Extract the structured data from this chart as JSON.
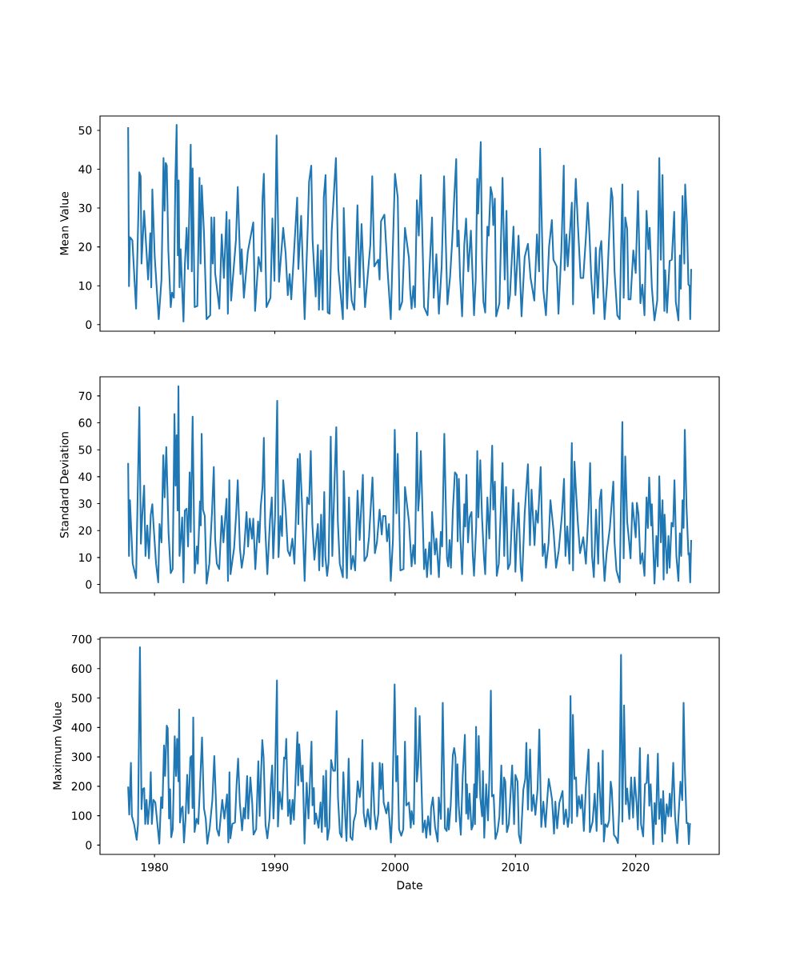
{
  "chart_data": [
    {
      "type": "line",
      "color": "#1f77b4",
      "ylabel": "Mean Value",
      "tick_labels": "y",
      "xlim": [
        1975.47,
        2026.94
      ],
      "xticks": [
        1980,
        1990,
        2000,
        2010,
        2020
      ],
      "ylim": [
        -1.7,
        53.7
      ],
      "yticks": [
        0,
        10,
        20,
        30,
        40,
        50
      ],
      "x": [
        1977.81,
        1977.88,
        1977.96,
        1978.16,
        1978.47,
        1978.74,
        1978.85,
        1978.92,
        1979.14,
        1979.47,
        1979.65,
        1979.73,
        1979.82,
        1980.02,
        1980.35,
        1980.58,
        1980.75,
        1980.84,
        1980.93,
        1981.02,
        1981.15,
        1981.35,
        1981.46,
        1981.61,
        1981.73,
        1981.84,
        1981.94,
        1982.01,
        1982.08,
        1982.17,
        1982.41,
        1982.52,
        1982.67,
        1982.79,
        1983.01,
        1983.1,
        1983.17,
        1983.34,
        1983.56,
        1983.74,
        1983.83,
        1983.93,
        1984.11,
        1984.33,
        1984.63,
        1984.73,
        1984.84,
        1984.96,
        1985.04,
        1985.39,
        1985.59,
        1985.77,
        1985.99,
        1986.1,
        1986.22,
        1986.37,
        1986.77,
        1986.92,
        1987.15,
        1987.25,
        1987.43,
        1987.76,
        1988.21,
        1988.36,
        1988.65,
        1988.87,
        1988.98,
        1989.09,
        1989.31,
        1989.64,
        1989.8,
        1989.97,
        1990.15,
        1990.35,
        1990.7,
        1990.9,
        1991.08,
        1991.23,
        1991.37,
        1991.86,
        1991.96,
        1992.19,
        1992.48,
        1992.74,
        1992.85,
        1993.03,
        1993.14,
        1993.4,
        1993.58,
        1993.67,
        1993.85,
        1993.98,
        1994.07,
        1994.22,
        1994.4,
        1994.55,
        1994.73,
        1994.91,
        1995.08,
        1995.28,
        1995.66,
        1995.73,
        1995.84,
        1996.01,
        1996.17,
        1996.39,
        1996.61,
        1996.87,
        1997.05,
        1997.21,
        1997.5,
        1997.94,
        1998.1,
        1998.27,
        1998.6,
        1998.71,
        1998.83,
        1999.11,
        1999.38,
        1999.64,
        1999.99,
        2000.22,
        2000.37,
        2000.59,
        2000.82,
        2001.15,
        2001.25,
        2001.37,
        2001.52,
        2001.65,
        2001.81,
        2001.97,
        2002.14,
        2002.41,
        2002.7,
        2002.85,
        2003.07,
        2003.21,
        2003.43,
        2003.64,
        2003.87,
        2004.07,
        2004.35,
        2004.57,
        2004.75,
        2004.91,
        2005.08,
        2005.17,
        2005.28,
        2005.4,
        2005.57,
        2005.75,
        2005.9,
        2006.08,
        2006.3,
        2006.56,
        2006.7,
        2006.83,
        2006.9,
        2007.01,
        2007.12,
        2007.23,
        2007.34,
        2007.49,
        2007.67,
        2007.78,
        2007.94,
        2008.07,
        2008.16,
        2008.29,
        2008.4,
        2008.67,
        2008.93,
        2009.11,
        2009.26,
        2009.4,
        2009.55,
        2009.84,
        2010.0,
        2010.26,
        2010.51,
        2010.77,
        2011.04,
        2011.26,
        2011.57,
        2011.79,
        2011.97,
        2012.05,
        2012.32,
        2012.54,
        2012.8,
        2013.03,
        2013.16,
        2013.43,
        2013.58,
        2013.82,
        2014.02,
        2014.09,
        2014.24,
        2014.35,
        2014.69,
        2014.79,
        2014.91,
        2015.02,
        2015.19,
        2015.42,
        2015.64,
        2015.86,
        2016.01,
        2016.15,
        2016.3,
        2016.52,
        2016.68,
        2016.85,
        2017.01,
        2017.14,
        2017.41,
        2017.63,
        2017.96,
        2018.07,
        2018.24,
        2018.47,
        2018.67,
        2018.89,
        2019.0,
        2019.13,
        2019.29,
        2019.4,
        2019.57,
        2019.8,
        2020.0,
        2020.19,
        2020.39,
        2020.55,
        2020.73,
        2020.9,
        2021.06,
        2021.16,
        2021.34,
        2021.56,
        2021.79,
        2021.96,
        2022.09,
        2022.23,
        2022.38,
        2022.45,
        2022.6,
        2022.82,
        2023.0,
        2023.2,
        2023.33,
        2023.55,
        2023.67,
        2023.75,
        2023.89,
        2024.04,
        2024.11,
        2024.26,
        2024.38,
        2024.48,
        2024.53,
        2024.61
      ],
      "values": [
        50.8,
        9.9,
        22.5,
        21.7,
        4.1,
        39.2,
        38.2,
        15.7,
        29.3,
        11.6,
        23.5,
        9.6,
        34.8,
        17.4,
        1.4,
        11.6,
        42.9,
        29.3,
        41.6,
        40.9,
        19.1,
        4.5,
        8.2,
        6.9,
        36.8,
        51.4,
        17.8,
        37.1,
        9.6,
        19.4,
        0.8,
        15,
        24.9,
        14.3,
        46.3,
        13.7,
        40.2,
        4.5,
        4.8,
        37.8,
        15.7,
        35.8,
        23.9,
        1.4,
        2.4,
        27.6,
        15.7,
        27.6,
        13.3,
        4.1,
        23.2,
        12,
        29,
        2.8,
        26.9,
        6.2,
        21.8,
        35.4,
        13,
        19.4,
        6.9,
        18.8,
        26.3,
        3.5,
        17.4,
        13.7,
        32.4,
        38.8,
        4.5,
        6.9,
        27.3,
        11.3,
        48.7,
        11,
        24.9,
        18.4,
        7.6,
        13,
        6.5,
        32.7,
        14.3,
        28,
        1.4,
        25.2,
        36.8,
        40.9,
        21.8,
        7.2,
        20.5,
        3.8,
        19.1,
        3.8,
        32.7,
        38.5,
        3.1,
        2.8,
        24.2,
        33.7,
        42.9,
        14.3,
        1.4,
        30,
        19.8,
        4.1,
        17.4,
        6.2,
        3.8,
        30.7,
        9.6,
        25.9,
        4.5,
        20.5,
        38.2,
        15,
        16.7,
        11.6,
        26.6,
        28.3,
        13.7,
        1.4,
        38.8,
        32.7,
        3.8,
        5.9,
        24.9,
        17.1,
        8.9,
        4.1,
        9.9,
        4.5,
        32,
        22.9,
        38.5,
        4.5,
        2.4,
        13.7,
        27.6,
        6.9,
        18.1,
        2.8,
        15,
        38.2,
        5.2,
        12.3,
        21.8,
        32.4,
        42.6,
        20.1,
        24.2,
        12.3,
        2.1,
        20.5,
        27.3,
        13.7,
        24.2,
        2.4,
        11.6,
        37.5,
        28.6,
        37.5,
        47,
        16.7,
        5.9,
        3.1,
        25.2,
        22.9,
        35.4,
        33.4,
        25.6,
        32.4,
        2.1,
        5.5,
        37.8,
        11.6,
        29.3,
        4.1,
        7.6,
        25.2,
        7.6,
        22.9,
        2.1,
        17.4,
        20.8,
        12,
        6.2,
        23.2,
        13.7,
        45.3,
        8.9,
        2.4,
        20.1,
        26.9,
        16.7,
        15,
        2.8,
        19.1,
        40.9,
        14,
        23.2,
        15,
        31.4,
        5.2,
        28.6,
        37.5,
        25.9,
        12,
        12,
        22.5,
        31.4,
        23.5,
        12.3,
        2.8,
        19.8,
        6.9,
        19.1,
        21.5,
        1.4,
        11,
        35.1,
        32.7,
        13.7,
        2.4,
        1.4,
        36.1,
        6.9,
        27.6,
        24.6,
        6.5,
        6.5,
        19.1,
        13.3,
        34.4,
        5.5,
        10.3,
        2.4,
        29.3,
        19.4,
        24.9,
        9.6,
        1.1,
        6.2,
        42.9,
        16.7,
        38.5,
        3.5,
        14,
        3.1,
        16.4,
        16.7,
        29,
        5.9,
        1.1,
        17.8,
        9.2,
        33.1,
        15.7,
        36.1,
        25.9,
        10.3,
        9.9,
        1.4,
        14.3
      ]
    },
    {
      "type": "line",
      "color": "#1f77b4",
      "ylabel": "Standard Deviation",
      "tick_labels": "y",
      "xlim": [
        1975.47,
        2026.94
      ],
      "xticks": [
        1980,
        1990,
        2000,
        2010,
        2020
      ],
      "ylim": [
        -3.1,
        77.1
      ],
      "yticks": [
        0,
        10,
        20,
        30,
        40,
        50,
        60,
        70
      ],
      "x": [
        1977.81,
        1977.88,
        1977.96,
        1978.19,
        1978.47,
        1978.74,
        1978.87,
        1978.98,
        1979.14,
        1979.25,
        1979.4,
        1979.54,
        1979.69,
        1979.82,
        1979.91,
        1980.13,
        1980.31,
        1980.42,
        1980.58,
        1980.73,
        1980.84,
        1980.98,
        1981.17,
        1981.35,
        1981.51,
        1981.66,
        1981.75,
        1981.84,
        1981.92,
        1981.99,
        1982.08,
        1982.19,
        1982.3,
        1982.41,
        1982.52,
        1982.67,
        1982.79,
        1982.92,
        1983.01,
        1983.17,
        1983.34,
        1983.52,
        1983.6,
        1983.78,
        1983.85,
        1983.92,
        1984.03,
        1984.18,
        1984.33,
        1984.56,
        1984.78,
        1984.93,
        1985.04,
        1985.18,
        1985.38,
        1985.59,
        1985.73,
        1985.99,
        1986.11,
        1986.22,
        1986.32,
        1986.62,
        1986.79,
        1986.92,
        1987.1,
        1987.25,
        1987.43,
        1987.65,
        1987.78,
        1987.92,
        1988.1,
        1988.21,
        1988.38,
        1988.61,
        1988.71,
        1988.83,
        1988.98,
        1989.09,
        1989.2,
        1989.38,
        1989.6,
        1989.75,
        1989.87,
        1990.02,
        1990.2,
        1990.31,
        1990.47,
        1990.6,
        1990.7,
        1990.9,
        1991.08,
        1991.26,
        1991.46,
        1991.63,
        1991.81,
        1991.9,
        1991.96,
        1992.08,
        1992.26,
        1992.48,
        1992.69,
        1992.85,
        1992.99,
        1993.12,
        1993.29,
        1993.58,
        1993.69,
        1993.85,
        1993.98,
        1994.11,
        1994.2,
        1994.35,
        1994.47,
        1994.65,
        1994.78,
        1994.95,
        1995.11,
        1995.24,
        1995.4,
        1995.66,
        1995.73,
        1995.84,
        1995.99,
        1996.17,
        1996.34,
        1996.5,
        1996.68,
        1996.88,
        1997.05,
        1997.32,
        1997.45,
        1997.67,
        1997.83,
        1998.12,
        1998.32,
        1998.49,
        1998.71,
        1998.89,
        1999.0,
        1999.2,
        1999.33,
        1999.49,
        1999.64,
        1999.82,
        1999.97,
        2000.11,
        2000.22,
        2000.44,
        2000.7,
        2000.82,
        2001.15,
        2001.37,
        2001.52,
        2001.65,
        2001.81,
        2001.92,
        2002.03,
        2002.14,
        2002.41,
        2002.54,
        2002.65,
        2002.85,
        2002.98,
        2003.07,
        2003.31,
        2003.43,
        2003.64,
        2003.8,
        2003.91,
        2004.09,
        2004.31,
        2004.42,
        2004.53,
        2004.64,
        2004.8,
        2004.97,
        2005.13,
        2005.2,
        2005.3,
        2005.42,
        2005.57,
        2005.75,
        2005.83,
        2005.93,
        2006.06,
        2006.19,
        2006.35,
        2006.46,
        2006.56,
        2006.74,
        2006.83,
        2006.92,
        2007.08,
        2007.23,
        2007.39,
        2007.49,
        2007.67,
        2007.83,
        2007.94,
        2008.07,
        2008.16,
        2008.29,
        2008.45,
        2008.62,
        2008.93,
        2009.07,
        2009.22,
        2009.38,
        2009.55,
        2009.82,
        2010.0,
        2010.11,
        2010.26,
        2010.44,
        2010.55,
        2010.77,
        2011.04,
        2011.21,
        2011.34,
        2011.59,
        2011.72,
        2011.87,
        2012.1,
        2012.27,
        2012.43,
        2012.54,
        2012.76,
        2012.91,
        2013.16,
        2013.38,
        2013.6,
        2013.86,
        2014.04,
        2014.16,
        2014.31,
        2014.49,
        2014.69,
        2014.79,
        2014.91,
        2015.02,
        2015.19,
        2015.37,
        2015.64,
        2015.86,
        2016.08,
        2016.21,
        2016.37,
        2016.52,
        2016.7,
        2016.88,
        2017.01,
        2017.14,
        2017.29,
        2017.41,
        2017.58,
        2017.85,
        2018.14,
        2018.24,
        2018.4,
        2018.67,
        2018.89,
        2019.0,
        2019.13,
        2019.29,
        2019.46,
        2019.57,
        2019.73,
        2020.0,
        2020.1,
        2020.23,
        2020.39,
        2020.55,
        2020.73,
        2020.9,
        2021.01,
        2021.12,
        2021.28,
        2021.34,
        2021.56,
        2021.72,
        2021.83,
        2021.96,
        2022.09,
        2022.23,
        2022.32,
        2022.4,
        2022.6,
        2022.72,
        2022.82,
        2022.98,
        2023.11,
        2023.22,
        2023.38,
        2023.55,
        2023.67,
        2023.78,
        2023.89,
        2023.98,
        2024.08,
        2024.22,
        2024.38,
        2024.44,
        2024.53,
        2024.61
      ],
      "values": [
        45.1,
        10.6,
        31.3,
        7.7,
        2.3,
        65.8,
        15.1,
        25.4,
        36.7,
        10.6,
        21.9,
        9.7,
        25.9,
        29.8,
        22.9,
        7.7,
        0.8,
        22.4,
        15.6,
        48,
        32.3,
        51,
        19,
        4.2,
        5.7,
        63.3,
        36.7,
        55.4,
        27.4,
        73.6,
        10.6,
        17,
        24.9,
        0.8,
        27.4,
        28.1,
        14.1,
        41.6,
        19.5,
        62.3,
        4.2,
        14.1,
        7.7,
        30.8,
        21.9,
        55.9,
        27.8,
        25.4,
        0.3,
        7.7,
        26.9,
        43.6,
        17,
        7.7,
        5.7,
        25.4,
        15.6,
        31.8,
        1.3,
        38.7,
        3.8,
        13.6,
        26.4,
        38.7,
        13.6,
        6.2,
        11.6,
        26.9,
        14.1,
        24.4,
        17,
        24.4,
        5.7,
        23.4,
        15.6,
        28.9,
        36.2,
        54.4,
        21.5,
        3.8,
        23.9,
        32.3,
        9.7,
        25.4,
        68.2,
        10.1,
        25.4,
        18,
        38.7,
        27.8,
        12.6,
        10.6,
        17,
        7.7,
        33.3,
        46.6,
        22.4,
        48.5,
        30.3,
        1.3,
        32.3,
        29.8,
        49.5,
        22.4,
        9.2,
        22.4,
        5.2,
        25.9,
        6.7,
        34.3,
        10.6,
        3.2,
        8.2,
        54.9,
        10.6,
        36.2,
        58.4,
        23.4,
        7.7,
        2.7,
        42.1,
        24.9,
        2.3,
        32.3,
        5.7,
        10.6,
        5.2,
        34.8,
        16.5,
        40.7,
        8.7,
        10.6,
        17.5,
        39.7,
        11.6,
        15.6,
        27.8,
        18.5,
        25.4,
        25.4,
        16,
        22.4,
        1.3,
        16.5,
        57.4,
        26.4,
        48.5,
        5.2,
        5.7,
        36.2,
        23.4,
        6.7,
        14.6,
        7.7,
        56.4,
        27.4,
        34.3,
        49.5,
        5.7,
        13.1,
        2.7,
        15.6,
        3.8,
        26.9,
        11.1,
        17,
        2.7,
        19.5,
        14.1,
        55.9,
        9.7,
        6.7,
        16.5,
        6.2,
        27.4,
        41.6,
        40.7,
        16,
        39.2,
        18,
        3.8,
        29.8,
        21.5,
        40.7,
        15.6,
        24.9,
        26.9,
        10.6,
        3.2,
        21.5,
        49.5,
        24.9,
        46.1,
        24.4,
        9.7,
        3.8,
        32.3,
        17,
        33.3,
        51.5,
        27.8,
        38.2,
        3.2,
        7.7,
        45.1,
        10.6,
        36.2,
        5.7,
        7.7,
        35.2,
        4.7,
        18,
        30.3,
        6.2,
        1.3,
        26.4,
        44.6,
        14.6,
        35.2,
        14.6,
        27.4,
        22.9,
        43.6,
        10.6,
        15.1,
        6.2,
        15.6,
        31.3,
        20.5,
        6.2,
        12.6,
        25.4,
        39.2,
        10.6,
        21.5,
        7.7,
        52.5,
        5.2,
        45.6,
        36.2,
        22.9,
        11.6,
        17.5,
        7.7,
        27.8,
        45.1,
        10.6,
        2.7,
        27.8,
        7.7,
        31.3,
        35.2,
        11.6,
        1.3,
        11.6,
        21,
        38.2,
        15.6,
        5.2,
        0.8,
        60.3,
        9.7,
        47.5,
        23.4,
        15.6,
        9.7,
        30.3,
        17.5,
        30.3,
        25.9,
        7.7,
        11.6,
        3.2,
        32.3,
        21,
        39.7,
        21.9,
        29.8,
        0.3,
        18,
        6.7,
        40.2,
        15.6,
        31.3,
        1.8,
        25.9,
        4.2,
        18,
        6.2,
        22.9,
        21.5,
        38.7,
        10.6,
        1.3,
        19,
        10.6,
        31.3,
        21,
        57.4,
        29.3,
        11.1,
        11.6,
        0.8,
        16.5
      ]
    },
    {
      "type": "line",
      "color": "#1f77b4",
      "ylabel": "Maximum Value",
      "xlabel": "Date",
      "xlim": [
        1975.47,
        2026.94
      ],
      "xticks": [
        1980,
        1990,
        2000,
        2010,
        2020
      ],
      "ylim": [
        -31.5,
        705.5
      ],
      "yticks": [
        0,
        100,
        200,
        300,
        400,
        500,
        600,
        700
      ],
      "x": [
        1977.81,
        1977.9,
        1977.97,
        1978.04,
        1978.12,
        1978.3,
        1978.41,
        1978.52,
        1978.63,
        1978.79,
        1978.92,
        1979.01,
        1979.14,
        1979.23,
        1979.34,
        1979.45,
        1979.62,
        1979.69,
        1979.78,
        1979.91,
        1980.07,
        1980.24,
        1980.4,
        1980.55,
        1980.66,
        1980.79,
        1980.88,
        1981.02,
        1981.1,
        1981.21,
        1981.3,
        1981.39,
        1981.52,
        1981.68,
        1981.79,
        1981.88,
        1981.99,
        1982.05,
        1982.12,
        1982.23,
        1982.34,
        1982.45,
        1982.58,
        1982.72,
        1982.83,
        1982.98,
        1983.09,
        1983.16,
        1983.22,
        1983.33,
        1983.49,
        1983.64,
        1983.77,
        1983.95,
        1984.11,
        1984.26,
        1984.39,
        1984.59,
        1984.81,
        1984.97,
        1985.08,
        1985.19,
        1985.36,
        1985.63,
        1985.81,
        1986.03,
        1986.14,
        1986.23,
        1986.31,
        1986.47,
        1986.69,
        1986.82,
        1986.95,
        1987.09,
        1987.28,
        1987.42,
        1987.53,
        1987.7,
        1987.79,
        1987.97,
        1988.12,
        1988.23,
        1988.45,
        1988.63,
        1988.74,
        1988.85,
        1988.96,
        1989.07,
        1989.23,
        1989.38,
        1989.56,
        1989.67,
        1989.78,
        1989.89,
        1990.0,
        1990.18,
        1990.26,
        1990.4,
        1990.6,
        1990.77,
        1990.88,
        1990.95,
        1991.1,
        1991.24,
        1991.32,
        1991.48,
        1991.59,
        1991.88,
        1991.94,
        1992.03,
        1992.21,
        1992.32,
        1992.47,
        1992.65,
        1992.8,
        1993.05,
        1993.13,
        1993.25,
        1993.31,
        1993.42,
        1993.64,
        1993.8,
        1993.91,
        1994.04,
        1994.19,
        1994.26,
        1994.37,
        1994.53,
        1994.68,
        1994.86,
        1995.01,
        1995.14,
        1995.25,
        1995.41,
        1995.56,
        1995.7,
        1995.85,
        1995.96,
        1996.14,
        1996.29,
        1996.45,
        1996.56,
        1996.73,
        1996.89,
        1997.06,
        1997.17,
        1997.28,
        1997.39,
        1997.55,
        1997.73,
        1997.95,
        1998.12,
        1998.28,
        1998.43,
        1998.61,
        1998.72,
        1998.83,
        1998.94,
        1999.05,
        1999.27,
        1999.43,
        1999.65,
        1999.76,
        1999.96,
        2000.09,
        2000.2,
        2000.33,
        2000.51,
        2000.68,
        2000.82,
        2000.93,
        2001.15,
        2001.3,
        2001.37,
        2001.55,
        2001.7,
        2001.81,
        2001.92,
        2002.04,
        2002.15,
        2002.3,
        2002.48,
        2002.59,
        2002.74,
        2002.92,
        2002.99,
        2003.14,
        2003.32,
        2003.54,
        2003.63,
        2003.81,
        2003.96,
        2004.14,
        2004.29,
        2004.41,
        2004.47,
        2004.62,
        2004.8,
        2004.91,
        2005.02,
        2005.07,
        2005.18,
        2005.29,
        2005.46,
        2005.62,
        2005.8,
        2005.91,
        2005.97,
        2006.08,
        2006.19,
        2006.35,
        2006.46,
        2006.57,
        2006.64,
        2006.73,
        2006.79,
        2006.95,
        2007.08,
        2007.23,
        2007.3,
        2007.41,
        2007.57,
        2007.72,
        2007.83,
        2007.96,
        2008.05,
        2008.19,
        2008.34,
        2008.52,
        2008.67,
        2008.83,
        2008.94,
        2009.05,
        2009.16,
        2009.29,
        2009.45,
        2009.73,
        2009.89,
        2010.0,
        2010.18,
        2010.29,
        2010.44,
        2010.66,
        2010.82,
        2010.91,
        2011.04,
        2011.22,
        2011.36,
        2011.5,
        2011.66,
        2011.84,
        2011.99,
        2012.15,
        2012.32,
        2012.5,
        2012.65,
        2012.77,
        2012.92,
        2013.05,
        2013.21,
        2013.32,
        2013.47,
        2013.65,
        2013.92,
        2014.03,
        2014.2,
        2014.36,
        2014.47,
        2014.58,
        2014.69,
        2014.78,
        2014.91,
        2015.04,
        2015.13,
        2015.27,
        2015.42,
        2015.53,
        2015.69,
        2015.86,
        2016.08,
        2016.19,
        2016.42,
        2016.59,
        2016.75,
        2016.9,
        2017.04,
        2017.15,
        2017.26,
        2017.35,
        2017.48,
        2017.64,
        2017.79,
        2017.92,
        2018.01,
        2018.19,
        2018.36,
        2018.52,
        2018.63,
        2018.78,
        2018.89,
        2019.03,
        2019.18,
        2019.29,
        2019.47,
        2019.62,
        2019.78,
        2019.91,
        2020.07,
        2020.18,
        2020.35,
        2020.44,
        2020.62,
        2020.77,
        2020.91,
        2021.02,
        2021.13,
        2021.24,
        2021.39,
        2021.46,
        2021.57,
        2021.68,
        2021.84,
        2021.95,
        2022.1,
        2022.21,
        2022.28,
        2022.43,
        2022.57,
        2022.72,
        2022.83,
        2022.94,
        2023.12,
        2023.27,
        2023.45,
        2023.56,
        2023.72,
        2023.87,
        2023.98,
        2024.09,
        2024.23,
        2024.34,
        2024.42,
        2024.51
      ],
      "values": [
        199,
        104,
        190,
        280,
        99,
        72,
        45,
        18,
        72,
        673,
        122,
        190,
        194,
        72,
        154,
        72,
        158,
        248,
        72,
        154,
        145,
        72,
        5,
        163,
        126,
        339,
        235,
        406,
        397,
        90,
        190,
        27,
        54,
        370,
        235,
        361,
        217,
        461,
        77,
        122,
        131,
        9,
        90,
        239,
        108,
        298,
        303,
        126,
        434,
        45,
        90,
        72,
        190,
        366,
        126,
        90,
        5,
        59,
        154,
        303,
        181,
        54,
        32,
        154,
        90,
        172,
        9,
        248,
        23,
        72,
        77,
        203,
        294,
        145,
        50,
        126,
        90,
        235,
        90,
        230,
        145,
        36,
        54,
        285,
        99,
        235,
        357,
        298,
        68,
        23,
        90,
        203,
        271,
        90,
        199,
        560,
        63,
        181,
        122,
        298,
        294,
        361,
        99,
        154,
        72,
        154,
        86,
        384,
        203,
        343,
        217,
        271,
        5,
        212,
        90,
        352,
        135,
        194,
        72,
        108,
        59,
        145,
        45,
        235,
        63,
        253,
        18,
        59,
        289,
        253,
        253,
        456,
        163,
        41,
        27,
        248,
        99,
        14,
        294,
        27,
        18,
        81,
        108,
        217,
        163,
        199,
        357,
        108,
        63,
        122,
        54,
        280,
        108,
        54,
        108,
        280,
        190,
        276,
        145,
        108,
        145,
        9,
        108,
        546,
        217,
        303,
        54,
        32,
        54,
        352,
        135,
        145,
        59,
        116,
        71,
        466,
        216,
        271,
        439,
        271,
        44,
        84,
        25,
        98,
        35,
        125,
        162,
        62,
        12,
        162,
        89,
        484,
        57,
        48,
        125,
        53,
        134,
        307,
        330,
        298,
        80,
        275,
        134,
        35,
        234,
        375,
        107,
        207,
        89,
        175,
        53,
        66,
        207,
        71,
        402,
        162,
        371,
        162,
        98,
        252,
        25,
        207,
        84,
        225,
        525,
        166,
        171,
        21,
        48,
        98,
        271,
        71,
        230,
        216,
        44,
        71,
        271,
        71,
        239,
        216,
        35,
        7,
        189,
        225,
        348,
        121,
        325,
        116,
        171,
        103,
        189,
        393,
        62,
        148,
        62,
        157,
        225,
        189,
        153,
        39,
        148,
        57,
        143,
        184,
        71,
        121,
        62,
        98,
        507,
        75,
        443,
        225,
        230,
        98,
        166,
        125,
        171,
        48,
        198,
        325,
        44,
        80,
        175,
        48,
        280,
        162,
        71,
        321,
        12,
        71,
        62,
        84,
        216,
        189,
        35,
        25,
        7,
        125,
        647,
        80,
        475,
        139,
        193,
        89,
        230,
        94,
        230,
        143,
        53,
        330,
        71,
        30,
        207,
        212,
        307,
        134,
        207,
        75,
        3,
        143,
        71,
        311,
        89,
        157,
        12,
        184,
        39,
        139,
        98,
        175,
        98,
        280,
        98,
        7,
        98,
        216,
        153,
        484,
        252,
        75,
        75,
        3,
        75
      ]
    }
  ]
}
